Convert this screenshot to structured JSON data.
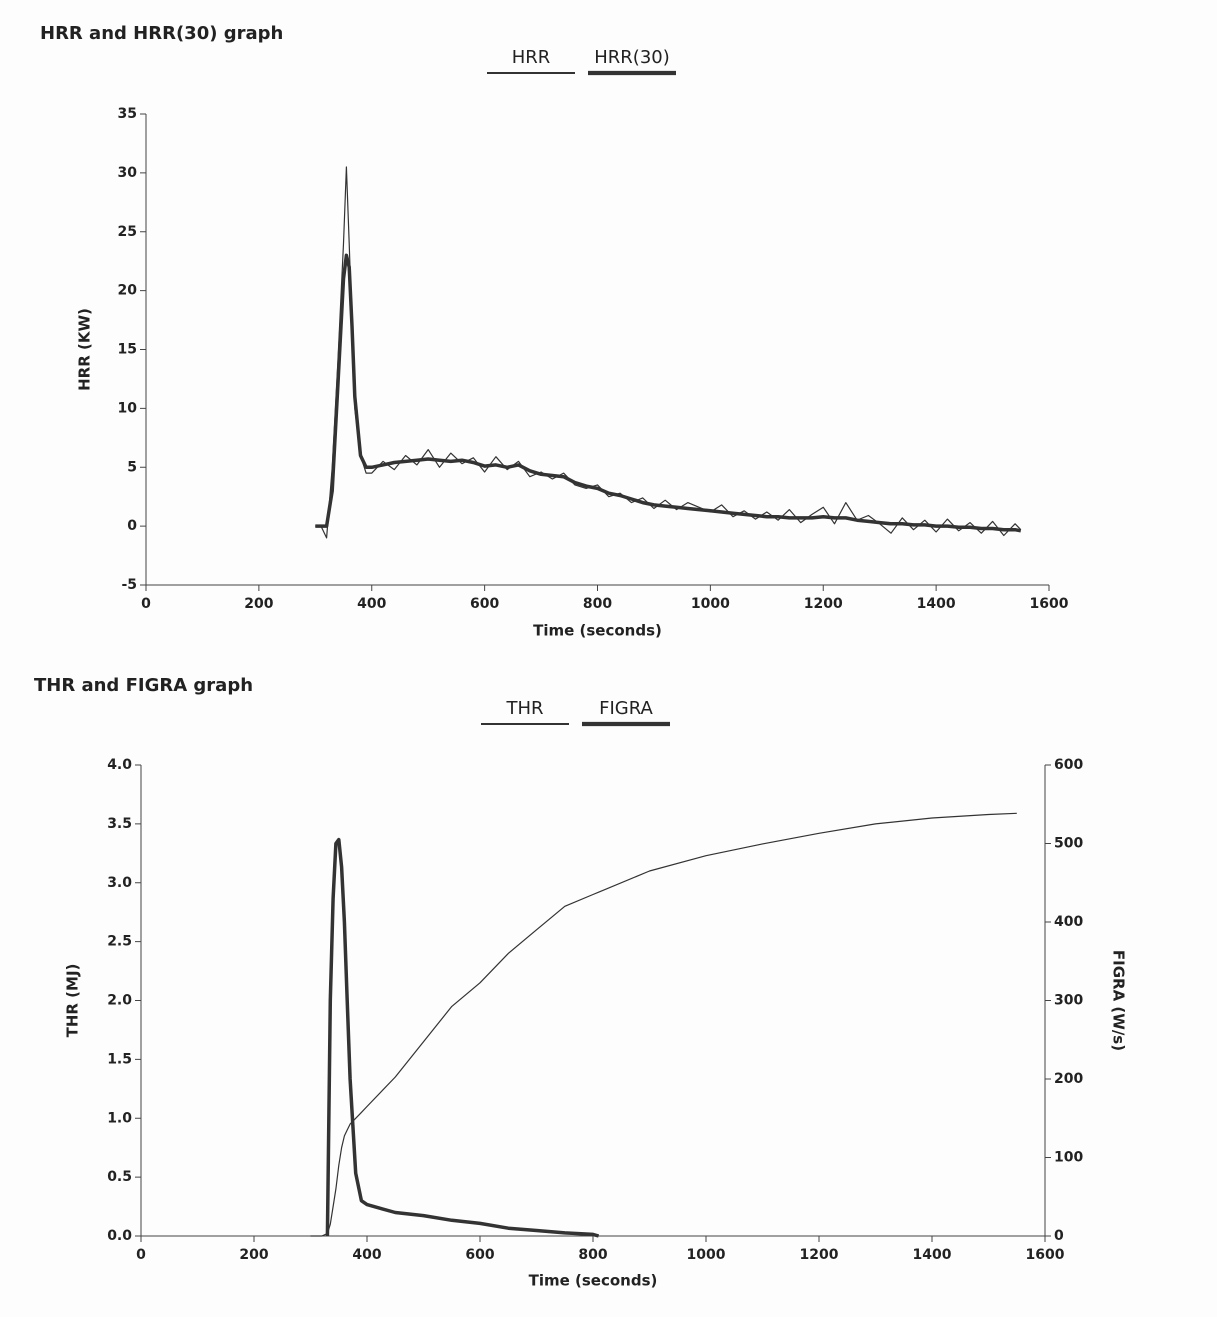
{
  "chart_data": [
    {
      "type": "line",
      "title": "HRR and HRR(30) graph",
      "x_label": "Time (seconds)",
      "y_label": "HRR (KW)",
      "xlim": [
        0,
        1600
      ],
      "xticks": [
        0,
        200,
        400,
        600,
        800,
        1000,
        1200,
        1400,
        1600
      ],
      "ylim": [
        -5,
        35
      ],
      "yticks": [
        -5,
        0,
        5,
        10,
        15,
        20,
        25,
        30,
        35
      ],
      "grid": false,
      "x": [
        300,
        310,
        320,
        330,
        340,
        350,
        355,
        360,
        365,
        370,
        380,
        390,
        400,
        420,
        440,
        460,
        480,
        500,
        520,
        540,
        560,
        580,
        600,
        620,
        640,
        660,
        680,
        700,
        720,
        740,
        760,
        780,
        800,
        820,
        840,
        860,
        880,
        900,
        920,
        940,
        960,
        980,
        1000,
        1020,
        1040,
        1060,
        1080,
        1100,
        1120,
        1140,
        1160,
        1180,
        1200,
        1220,
        1240,
        1260,
        1280,
        1300,
        1320,
        1340,
        1360,
        1380,
        1400,
        1420,
        1440,
        1460,
        1480,
        1500,
        1520,
        1540,
        1550
      ],
      "series": [
        {
          "name": "HRR",
          "color": "#333333",
          "values": [
            0,
            0,
            -1,
            5,
            14,
            24,
            30.5,
            24,
            17,
            10,
            6,
            4.5,
            4.5,
            5.5,
            4.8,
            6,
            5.2,
            6.5,
            5,
            6.2,
            5.3,
            5.8,
            4.6,
            5.9,
            4.8,
            5.5,
            4.2,
            4.6,
            4,
            4.5,
            3.5,
            3.2,
            3.5,
            2.5,
            2.8,
            2,
            2.4,
            1.5,
            2.2,
            1.4,
            2,
            1.6,
            1.2,
            1.8,
            0.8,
            1.3,
            0.6,
            1.2,
            0.5,
            1.4,
            0.3,
            1,
            1.6,
            0.2,
            2,
            0.5,
            0.9,
            0.2,
            -0.6,
            0.7,
            -0.3,
            0.5,
            -0.5,
            0.6,
            -0.4,
            0.3,
            -0.6,
            0.4,
            -0.8,
            0.2,
            -0.3
          ]
        },
        {
          "name": "HRR(30)",
          "color": "#333333",
          "values": [
            0,
            0,
            0,
            3,
            12,
            21,
            23,
            22,
            17,
            11,
            6,
            5,
            5,
            5.2,
            5.4,
            5.5,
            5.6,
            5.7,
            5.6,
            5.5,
            5.6,
            5.4,
            5.1,
            5.2,
            5.0,
            5.2,
            4.7,
            4.4,
            4.3,
            4.2,
            3.7,
            3.4,
            3.2,
            2.8,
            2.6,
            2.3,
            2.0,
            1.8,
            1.7,
            1.6,
            1.5,
            1.4,
            1.3,
            1.2,
            1.1,
            1.0,
            0.9,
            0.8,
            0.8,
            0.7,
            0.7,
            0.7,
            0.8,
            0.7,
            0.7,
            0.5,
            0.4,
            0.3,
            0.2,
            0.2,
            0.1,
            0.1,
            0,
            0,
            -0.1,
            -0.1,
            -0.2,
            -0.2,
            -0.3,
            -0.3,
            -0.4
          ]
        }
      ]
    },
    {
      "type": "line",
      "title": "THR and FIGRA graph",
      "x_label": "Time (seconds)",
      "y_label": "THR (MJ)",
      "y2_label": "FIGRA (W/s)",
      "xlim": [
        0,
        1600
      ],
      "xticks": [
        0,
        200,
        400,
        600,
        800,
        1000,
        1200,
        1400,
        1600
      ],
      "ylim": [
        0,
        4
      ],
      "yticks": [
        {
          "value": 0,
          "label": "0.0"
        },
        {
          "value": 0.5,
          "label": "0.5"
        },
        {
          "value": 1,
          "label": "1.0"
        },
        {
          "value": 1.5,
          "label": "1.5"
        },
        {
          "value": 2,
          "label": "2.0"
        },
        {
          "value": 2.5,
          "label": "2.5"
        },
        {
          "value": 3,
          "label": "3.0"
        },
        {
          "value": 3.5,
          "label": "3.5"
        },
        {
          "value": 4,
          "label": "4.0"
        }
      ],
      "y2lim": [
        0,
        600
      ],
      "y2ticks": [
        0,
        100,
        200,
        300,
        400,
        500,
        600
      ],
      "grid": false,
      "x": [
        300,
        320,
        330,
        335,
        340,
        345,
        350,
        355,
        360,
        365,
        370,
        380,
        390,
        400,
        450,
        500,
        550,
        600,
        650,
        700,
        750,
        800,
        810,
        900,
        1000,
        1100,
        1200,
        1300,
        1400,
        1500,
        1550
      ],
      "series": [
        {
          "name": "THR",
          "color": "#333333",
          "values": [
            0,
            0,
            0.02,
            0.1,
            0.25,
            0.4,
            0.6,
            0.75,
            0.85,
            0.9,
            0.95,
            1.0,
            1.05,
            1.1,
            1.35,
            1.65,
            1.95,
            2.15,
            2.4,
            2.6,
            2.8,
            2.9,
            2.92,
            3.1,
            3.23,
            3.33,
            3.42,
            3.5,
            3.55,
            3.58,
            3.59
          ]
        },
        {
          "name": "FIGRA",
          "color": "#333333",
          "axis": "y2",
          "values": [
            null,
            null,
            0,
            300,
            430,
            500,
            505,
            470,
            400,
            300,
            200,
            80,
            45,
            40,
            30,
            26,
            20,
            16,
            10,
            7,
            4,
            2,
            0,
            null,
            null,
            null,
            null,
            null,
            null,
            null,
            null
          ]
        }
      ]
    }
  ]
}
